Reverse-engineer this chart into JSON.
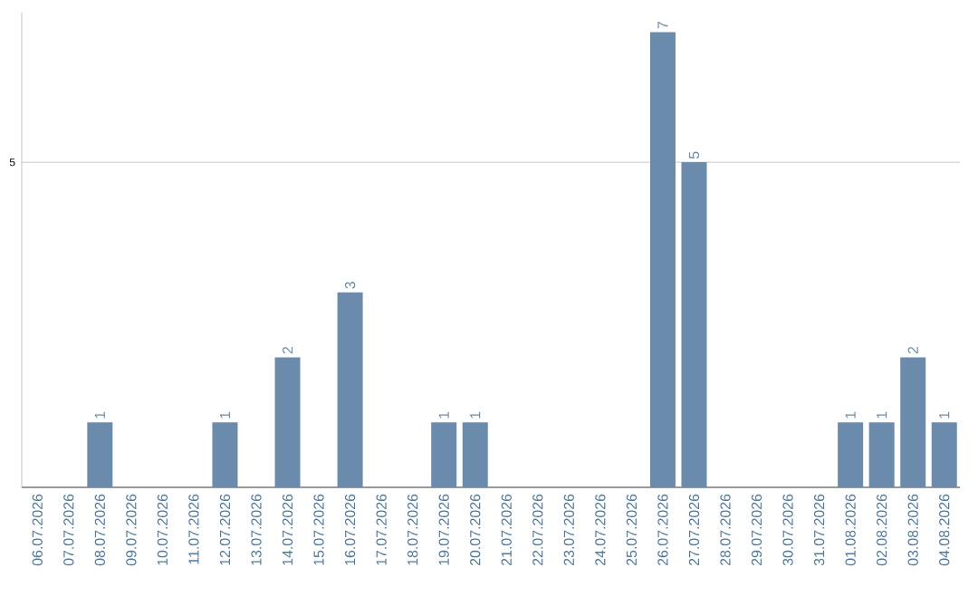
{
  "chart_data": {
    "type": "bar",
    "categories": [
      "06.07.2026",
      "07.07.2026",
      "08.07.2026",
      "09.07.2026",
      "10.07.2026",
      "11.07.2026",
      "12.07.2026",
      "13.07.2026",
      "14.07.2026",
      "15.07.2026",
      "16.07.2026",
      "17.07.2026",
      "18.07.2026",
      "19.07.2026",
      "20.07.2026",
      "21.07.2026",
      "22.07.2026",
      "23.07.2026",
      "24.07.2026",
      "25.07.2026",
      "26.07.2026",
      "27.07.2026",
      "28.07.2026",
      "29.07.2026",
      "30.07.2026",
      "31.07.2026",
      "01.08.2026",
      "02.08.2026",
      "03.08.2026",
      "04.08.2026"
    ],
    "values": [
      0,
      0,
      1,
      0,
      0,
      0,
      1,
      0,
      2,
      0,
      3,
      0,
      0,
      1,
      1,
      0,
      0,
      0,
      0,
      0,
      7,
      5,
      0,
      0,
      0,
      0,
      1,
      1,
      2,
      1
    ],
    "value_labels": [
      null,
      null,
      "1",
      null,
      null,
      null,
      "1",
      null,
      "2",
      null,
      "3",
      null,
      null,
      "1",
      "1",
      null,
      null,
      null,
      null,
      null,
      "7",
      "5",
      null,
      null,
      null,
      null,
      "1",
      "1",
      "2",
      "1"
    ],
    "color": "#6a8bab",
    "ylim": [
      0,
      7.3
    ],
    "yticks": [
      5
    ],
    "grid": "y"
  }
}
